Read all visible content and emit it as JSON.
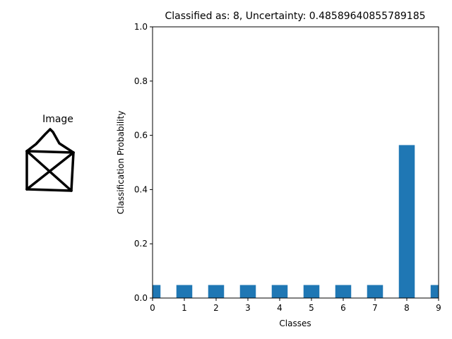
{
  "image_panel": {
    "title": "Image"
  },
  "chart_data": {
    "type": "bar",
    "title": "Classified as: 8, Uncertainty: 0.48589640855789185",
    "xlabel": "Classes",
    "ylabel": "Classification Probability",
    "categories": [
      "0",
      "1",
      "2",
      "3",
      "4",
      "5",
      "6",
      "7",
      "8",
      "9"
    ],
    "values": [
      0.048,
      0.048,
      0.048,
      0.048,
      0.048,
      0.048,
      0.048,
      0.048,
      0.564,
      0.048
    ],
    "xlim": [
      0,
      9
    ],
    "ylim": [
      0,
      1.0
    ],
    "yticks": [
      "0.0",
      "0.2",
      "0.4",
      "0.6",
      "0.8",
      "1.0"
    ],
    "bar_color": "#1f77b4",
    "grid": false
  }
}
